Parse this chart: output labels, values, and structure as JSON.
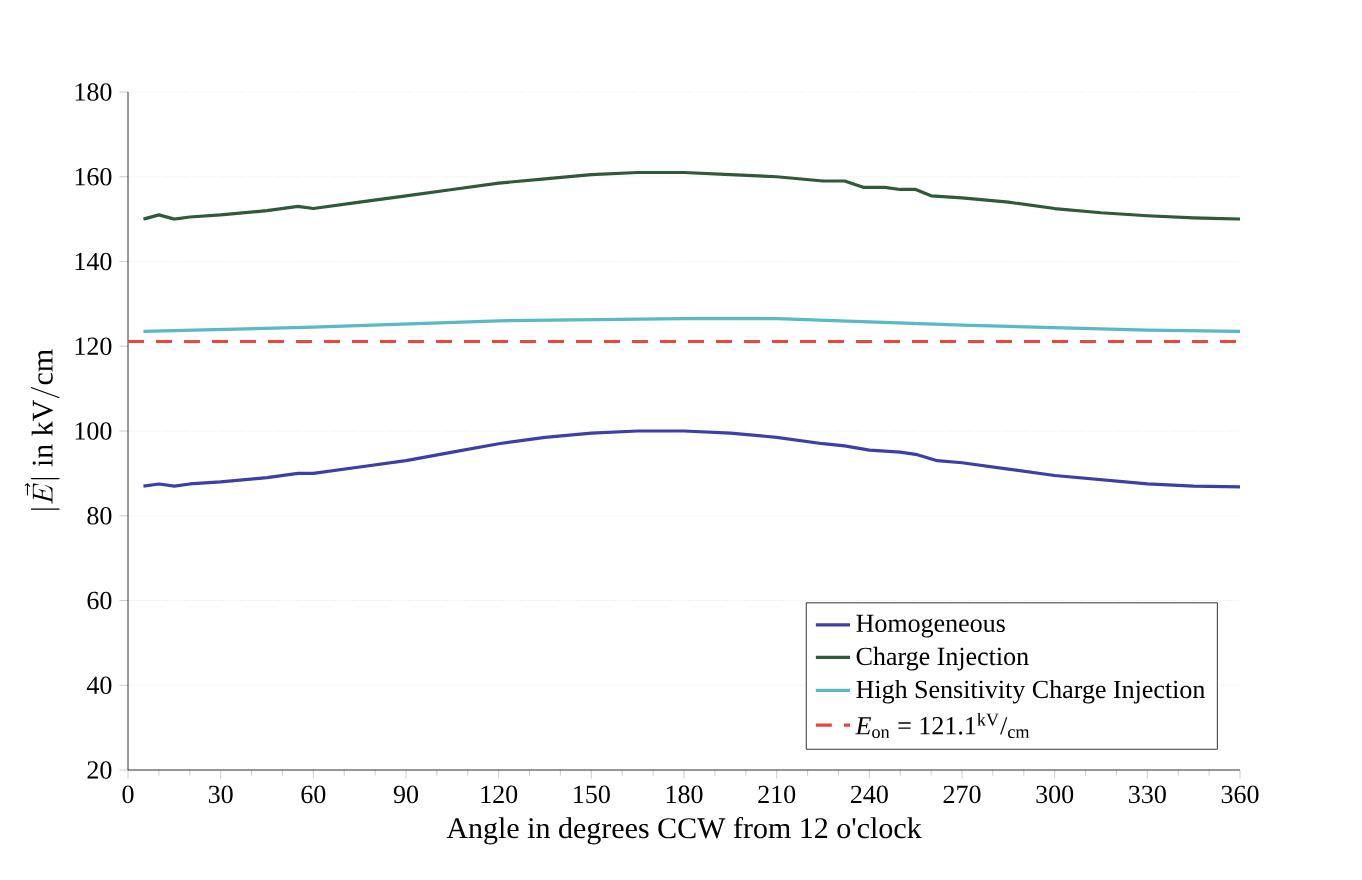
{
  "chart_data": {
    "type": "line",
    "xlabel": "Angle in degrees CCW from 12 o'clock",
    "ylabel": "|\\vec{E}|\\ \\mathrm{in\\ kV/cm}",
    "xlim": [
      0,
      360
    ],
    "ylim": [
      20,
      180
    ],
    "xticks": [
      0,
      30,
      60,
      90,
      120,
      150,
      180,
      210,
      240,
      270,
      300,
      330,
      360
    ],
    "yticks": [
      20,
      40,
      60,
      80,
      100,
      120,
      140,
      160,
      180
    ],
    "grid": "y",
    "legend": "bottom right",
    "series": [
      {
        "name": "Homogeneous",
        "color": "#3c3fa8",
        "x": [
          5,
          10,
          15,
          20,
          30,
          45,
          55,
          60,
          75,
          90,
          105,
          120,
          135,
          150,
          165,
          180,
          195,
          210,
          225,
          232,
          240,
          250,
          255,
          262,
          270,
          285,
          300,
          315,
          330,
          345,
          360
        ],
        "values": [
          87,
          87.5,
          87,
          87.5,
          88,
          89,
          90,
          90,
          91.5,
          93,
          95,
          97,
          98.5,
          99.5,
          100,
          100,
          99.5,
          98.5,
          97,
          96.5,
          95.5,
          95,
          94.5,
          93,
          92.5,
          91,
          89.5,
          88.5,
          87.5,
          87,
          86.8
        ]
      },
      {
        "name": "Charge Injection",
        "color": "#2f5a3a",
        "x": [
          5,
          10,
          15,
          20,
          30,
          45,
          55,
          60,
          75,
          90,
          105,
          120,
          135,
          150,
          165,
          180,
          195,
          210,
          225,
          232,
          238,
          245,
          250,
          255,
          260,
          270,
          285,
          300,
          315,
          330,
          345,
          360
        ],
        "values": [
          150,
          151,
          150,
          150.5,
          151,
          152,
          153,
          152.5,
          154,
          155.5,
          157,
          158.5,
          159.5,
          160.5,
          161,
          161,
          160.5,
          160,
          159,
          159,
          157.5,
          157.5,
          157,
          157,
          155.5,
          155,
          154,
          152.5,
          151.5,
          150.8,
          150.3,
          150
        ]
      },
      {
        "name": "High Sensitivity Charge Injection",
        "color": "#5bb8c8",
        "x": [
          5,
          60,
          120,
          180,
          210,
          270,
          330,
          360
        ],
        "values": [
          123.5,
          124.5,
          126,
          126.5,
          126.5,
          125,
          123.8,
          123.5
        ]
      },
      {
        "name": "*E*$_{on}$ = 121.1$^{kV}$/$_{cm}$",
        "color": "#e8463f",
        "line_style": "dashed",
        "x": [
          0,
          360
        ],
        "values": [
          121.1,
          121.1
        ]
      }
    ]
  }
}
